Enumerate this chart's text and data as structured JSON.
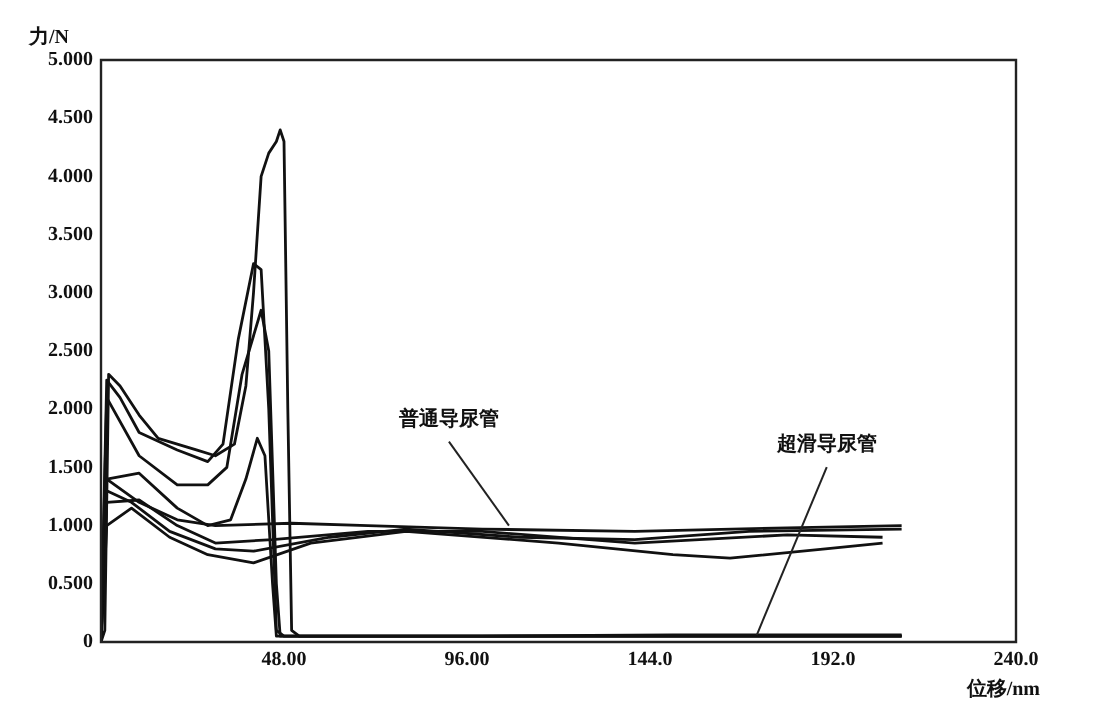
{
  "chart_data": {
    "type": "line",
    "xlabel": "位移/nm",
    "ylabel": "力/N",
    "xlim": [
      0,
      240
    ],
    "ylim": [
      0,
      5
    ],
    "xticks": [
      {
        "value": 48,
        "label": "48.00"
      },
      {
        "value": 96,
        "label": "96.00"
      },
      {
        "value": 144,
        "label": "144.0"
      },
      {
        "value": 192,
        "label": "192.0"
      },
      {
        "value": 240,
        "label": "240.0"
      }
    ],
    "yticks": [
      0,
      {
        "value": 0.5,
        "label": "0.500"
      },
      {
        "value": 1,
        "label": "1.000"
      },
      {
        "value": 1.5,
        "label": "1.500"
      },
      {
        "value": 2,
        "label": "2.000"
      },
      {
        "value": 2.5,
        "label": "2.500"
      },
      {
        "value": 3,
        "label": "3.000"
      },
      {
        "value": 3.5,
        "label": "3.500"
      },
      {
        "value": 4,
        "label": "4.000"
      },
      {
        "value": 4.5,
        "label": "4.500"
      },
      {
        "value": 5,
        "label": "5.000"
      }
    ],
    "grid": false,
    "legend": false,
    "line_style": "solid",
    "series": [
      {
        "color": "#111111",
        "x": [
          0,
          1,
          2,
          5,
          10,
          15,
          20,
          25,
          30,
          35,
          38,
          40,
          42,
          44,
          46,
          47,
          48,
          49,
          50,
          52,
          100,
          150,
          210
        ],
        "values": [
          0,
          0.1,
          2.3,
          2.2,
          1.95,
          1.75,
          1.7,
          1.65,
          1.6,
          1.7,
          2.2,
          3.0,
          4.0,
          4.2,
          4.3,
          4.4,
          4.3,
          2.0,
          0.1,
          0.05,
          0.05,
          0.06,
          0.06
        ]
      },
      {
        "color": "#111111",
        "x": [
          0,
          1.5,
          5,
          10,
          20,
          28,
          32,
          36,
          40,
          42,
          44,
          46,
          48,
          210
        ],
        "values": [
          0,
          2.25,
          2.1,
          1.8,
          1.65,
          1.55,
          1.7,
          2.6,
          3.25,
          3.2,
          2.0,
          0.1,
          0.05,
          0.05
        ]
      },
      {
        "color": "#111111",
        "x": [
          0,
          1.5,
          10,
          20,
          28,
          33,
          37,
          42,
          44,
          46,
          47,
          210
        ],
        "values": [
          0,
          2.1,
          1.6,
          1.35,
          1.35,
          1.5,
          2.3,
          2.85,
          2.5,
          0.5,
          0.05,
          0.05
        ]
      },
      {
        "color": "#111111",
        "x": [
          0,
          1.5,
          10,
          20,
          28,
          34,
          38,
          41,
          43,
          45,
          46,
          210
        ],
        "values": [
          0,
          1.4,
          1.45,
          1.15,
          1.0,
          1.05,
          1.4,
          1.75,
          1.6,
          0.5,
          0.05,
          0.05
        ]
      },
      {
        "color": "#111111",
        "x": [
          0,
          1.5,
          10,
          20,
          30,
          50,
          70,
          100,
          140,
          180,
          210
        ],
        "values": [
          0,
          1.4,
          1.2,
          1.05,
          1.0,
          1.02,
          1.0,
          0.97,
          0.95,
          0.98,
          1.0
        ]
      },
      {
        "color": "#111111",
        "x": [
          0,
          1.5,
          8,
          18,
          30,
          40,
          60,
          80,
          110,
          140,
          170,
          210
        ],
        "values": [
          0,
          1.3,
          1.2,
          0.95,
          0.8,
          0.78,
          0.9,
          0.97,
          0.9,
          0.88,
          0.95,
          0.97
        ]
      },
      {
        "color": "#111111",
        "x": [
          0,
          1.5,
          8,
          18,
          28,
          40,
          55,
          80,
          120,
          150,
          165,
          190,
          205
        ],
        "values": [
          0,
          1.0,
          1.15,
          0.9,
          0.75,
          0.68,
          0.85,
          0.95,
          0.85,
          0.75,
          0.72,
          0.8,
          0.85
        ]
      },
      {
        "color": "#111111",
        "x": [
          0,
          1.5,
          10,
          20,
          30,
          45,
          70,
          100,
          140,
          180,
          205
        ],
        "values": [
          0,
          1.2,
          1.22,
          1.0,
          0.85,
          0.88,
          0.95,
          0.95,
          0.85,
          0.92,
          0.9
        ]
      }
    ],
    "annotations": [
      {
        "text": "普通导尿管",
        "x": 107,
        "y": 1.0
      },
      {
        "text": "超滑导尿管",
        "x": 172,
        "y": 0.06
      }
    ]
  }
}
